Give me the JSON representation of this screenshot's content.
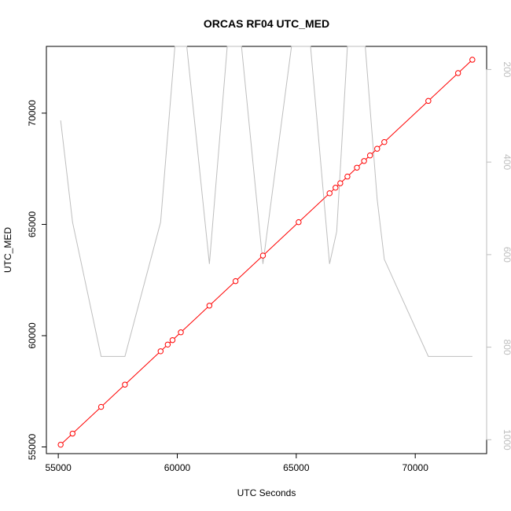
{
  "chart_data": {
    "type": "line",
    "title": "ORCAS RF04 UTC_MED",
    "xlabel": "UTC Seconds",
    "ylabel": "UTC_MED",
    "xlim": [
      54500,
      73000
    ],
    "ylim": [
      54700,
      73000
    ],
    "y2lim": [
      1030,
      150
    ],
    "x_ticks": [
      55000,
      60000,
      65000,
      70000
    ],
    "y_ticks": [
      55000,
      60000,
      65000,
      70000
    ],
    "y2_ticks": [
      200,
      400,
      600,
      800,
      1000
    ],
    "grid": false,
    "legend": "none",
    "series": [
      {
        "axis": "left",
        "color": "#ff0000",
        "style": "line-with-circle-markers",
        "x": [
          55100,
          55600,
          56800,
          57800,
          59300,
          59600,
          59800,
          60150,
          61350,
          62450,
          63600,
          65100,
          66400,
          66650,
          66850,
          67150,
          67550,
          67850,
          68100,
          68400,
          68700,
          70550,
          71800,
          72400
        ],
        "y": [
          55100,
          55600,
          56800,
          57800,
          59300,
          59600,
          59800,
          60150,
          61350,
          62450,
          63600,
          65100,
          66400,
          66650,
          66850,
          67150,
          67550,
          67850,
          68100,
          68400,
          68700,
          70550,
          71800,
          72400
        ]
      },
      {
        "axis": "right",
        "color": "#bebebe",
        "style": "line",
        "x": [
          55100,
          55600,
          56800,
          57800,
          59300,
          59900,
          60400,
          61350,
          62100,
          62700,
          63600,
          64800,
          65600,
          66400,
          66700,
          67150,
          67900,
          68400,
          68700,
          70550,
          72400
        ],
        "y": [
          310,
          530,
          820,
          820,
          530,
          130,
          130,
          620,
          130,
          130,
          620,
          130,
          130,
          620,
          550,
          130,
          130,
          480,
          610,
          820,
          820
        ]
      }
    ]
  }
}
